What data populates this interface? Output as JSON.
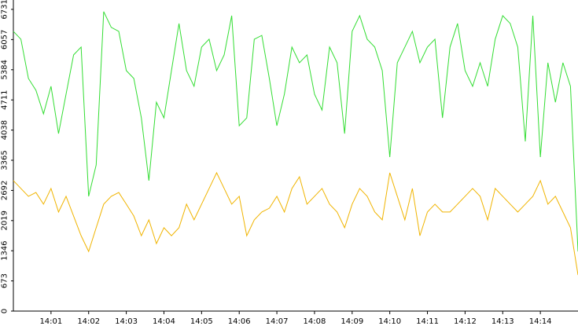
{
  "chart_data": {
    "type": "line",
    "x": [
      0,
      0.2,
      0.4,
      0.6,
      0.8,
      1,
      1.2,
      1.4,
      1.6,
      1.8,
      2,
      2.2,
      2.4,
      2.6,
      2.8,
      3,
      3.2,
      3.4,
      3.6,
      3.8,
      4,
      4.2,
      4.4,
      4.6,
      4.8,
      5,
      5.2,
      5.4,
      5.6,
      5.8,
      6,
      6.2,
      6.4,
      6.6,
      6.8,
      7,
      7.2,
      7.4,
      7.6,
      7.8,
      8,
      8.2,
      8.4,
      8.6,
      8.8,
      9,
      9.2,
      9.4,
      9.6,
      9.8,
      10,
      10.2,
      10.4,
      10.6,
      10.8,
      11,
      11.2,
      11.4,
      11.6,
      11.8,
      12,
      12.2,
      12.4,
      12.6,
      12.8,
      13,
      13.2,
      13.4,
      13.6,
      13.8,
      14,
      14.2,
      14.4,
      14.6,
      14.8,
      15
    ],
    "series": [
      {
        "color": "#33dd33",
        "values": [
          6240,
          6065,
          5190,
          4925,
          4400,
          5015,
          3960,
          4840,
          5715,
          5890,
          2560,
          3260,
          6680,
          6330,
          6240,
          5365,
          5190,
          4310,
          2910,
          4660,
          4310,
          5365,
          6415,
          5365,
          5015,
          5890,
          6065,
          5365,
          5715,
          6590,
          4135,
          4310,
          6065,
          6150,
          5190,
          4135,
          4840,
          5890,
          5540,
          5715,
          4840,
          4485,
          5890,
          5540,
          3960,
          6240,
          6590,
          6065,
          5890,
          5365,
          3435,
          5540,
          5890,
          6240,
          5540,
          5890,
          6065,
          4310,
          5890,
          6415,
          5365,
          5015,
          5540,
          5015,
          6065,
          6590,
          6415,
          5890,
          3785,
          6590,
          3435,
          5540,
          4660,
          5540,
          5015,
          1330
        ]
      },
      {
        "color": "#f0b400",
        "values": [
          2910,
          2735,
          2560,
          2645,
          2385,
          2735,
          2210,
          2560,
          2120,
          1680,
          1330,
          1860,
          2385,
          2560,
          2645,
          2385,
          2120,
          1680,
          2035,
          1505,
          1860,
          1680,
          1860,
          2385,
          2035,
          2385,
          2735,
          3085,
          2735,
          2385,
          2560,
          1680,
          2035,
          2210,
          2295,
          2560,
          2210,
          2735,
          2995,
          2385,
          2560,
          2735,
          2385,
          2210,
          1860,
          2385,
          2735,
          2560,
          2210,
          2035,
          3085,
          2560,
          2035,
          2735,
          1680,
          2210,
          2385,
          2210,
          2210,
          2385,
          2560,
          2735,
          2560,
          2035,
          2735,
          2560,
          2385,
          2210,
          2385,
          2560,
          2910,
          2385,
          2560,
          2210,
          1860,
          805
        ]
      }
    ],
    "xlim": [
      0,
      15
    ],
    "xticks": [
      {
        "value": 1,
        "label": "14:01"
      },
      {
        "value": 2,
        "label": "14:02"
      },
      {
        "value": 3,
        "label": "14:03"
      },
      {
        "value": 4,
        "label": "14:04"
      },
      {
        "value": 5,
        "label": "14:05"
      },
      {
        "value": 6,
        "label": "14:06"
      },
      {
        "value": 7,
        "label": "14:07"
      },
      {
        "value": 8,
        "label": "14:08"
      },
      {
        "value": 9,
        "label": "14:09"
      },
      {
        "value": 10,
        "label": "14:10"
      },
      {
        "value": 11,
        "label": "14:11"
      },
      {
        "value": 12,
        "label": "14:12"
      },
      {
        "value": 13,
        "label": "14:13"
      },
      {
        "value": 14,
        "label": "14:14"
      }
    ],
    "ylim": [
      0,
      6940
    ],
    "yticks": [
      0,
      673,
      1346,
      2019,
      2692,
      3365,
      4038,
      4711,
      5384,
      6057,
      6731
    ]
  }
}
